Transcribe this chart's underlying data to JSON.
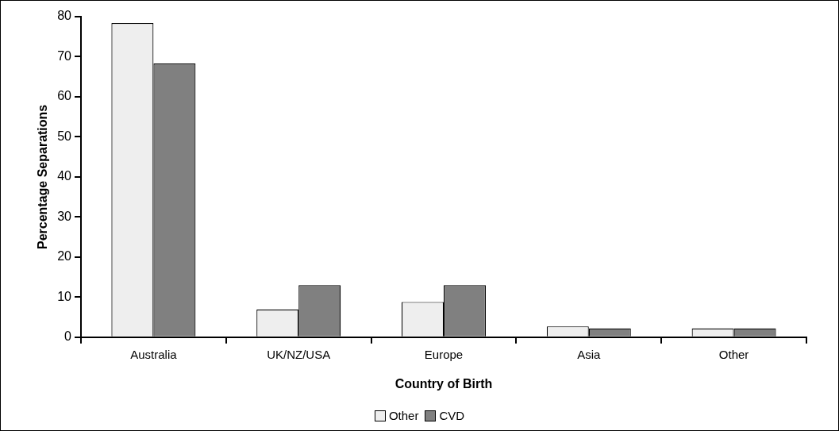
{
  "chart_data": {
    "type": "bar",
    "xlabel": "Country of Birth",
    "ylabel": "Percentage Separations",
    "categories": [
      "Australia",
      "UK/NZ/USA",
      "Europe",
      "Asia",
      "Other"
    ],
    "series": [
      {
        "name": "Other",
        "color": "#eeeeee",
        "values": [
          78.4,
          6.9,
          8.8,
          2.7,
          2.2
        ]
      },
      {
        "name": "CVD",
        "color": "#808080",
        "values": [
          68.3,
          13.0,
          13.0,
          2.2,
          2.2
        ]
      }
    ],
    "ylim": [
      0,
      80
    ],
    "yticks": [
      0,
      10,
      20,
      30,
      40,
      50,
      60,
      70,
      80
    ],
    "grid": false,
    "legend": "bottom"
  }
}
